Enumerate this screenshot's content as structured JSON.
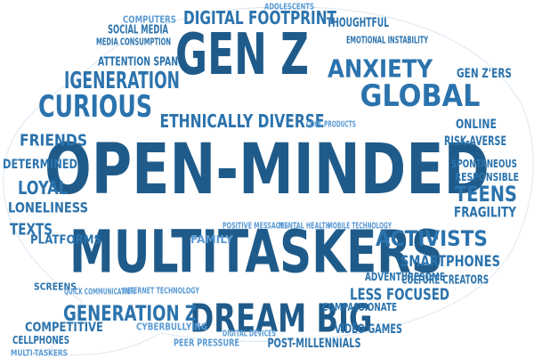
{
  "colors": {
    "dark": "#1f5b8a",
    "mid": "#2b73ad",
    "light": "#5b9bd5",
    "background": "#ffffff"
  },
  "words": [
    {
      "text": "GEN Z",
      "tone": "dark"
    },
    {
      "text": "OPEN-MINDED",
      "tone": "dark"
    },
    {
      "text": "MULTITASKERS",
      "tone": "dark"
    },
    {
      "text": "DREAM BIG",
      "tone": "dark"
    },
    {
      "text": "ANXIETY",
      "tone": "mid"
    },
    {
      "text": "GLOBAL",
      "tone": "mid"
    },
    {
      "text": "CURIOUS",
      "tone": "mid"
    },
    {
      "text": "IGENERATION",
      "tone": "mid"
    },
    {
      "text": "DIGITAL FOOTPRINT",
      "tone": "mid"
    },
    {
      "text": "ETHNICALLY DIVERSE",
      "tone": "mid"
    },
    {
      "text": "ACTIVISTS",
      "tone": "mid"
    },
    {
      "text": "SMARTPHONES",
      "tone": "mid"
    },
    {
      "text": "GENERATION Z",
      "tone": "mid"
    },
    {
      "text": "LESS FOCUSED",
      "tone": "mid"
    },
    {
      "text": "POST-MILLENNIALS",
      "tone": "mid"
    },
    {
      "text": "TEENS",
      "tone": "mid"
    },
    {
      "text": "FRIENDS",
      "tone": "mid"
    },
    {
      "text": "LOYAL",
      "tone": "mid"
    },
    {
      "text": "DETERMINED",
      "tone": "mid"
    },
    {
      "text": "LONELINESS",
      "tone": "mid"
    },
    {
      "text": "TEXTS",
      "tone": "mid"
    },
    {
      "text": "PLATFORMS",
      "tone": "mid"
    },
    {
      "text": "COMPETITIVE",
      "tone": "mid"
    },
    {
      "text": "FRAGILITY",
      "tone": "mid"
    },
    {
      "text": "RESPONSIBLE",
      "tone": "mid"
    },
    {
      "text": "SPONTANEOUS",
      "tone": "mid"
    },
    {
      "text": "RISK-AVERSE",
      "tone": "mid"
    },
    {
      "text": "ONLINE",
      "tone": "mid"
    },
    {
      "text": "GEN Z'ERS",
      "tone": "mid"
    },
    {
      "text": "CULTURE CREATORS",
      "tone": "mid"
    },
    {
      "text": "ADVENTURESOME",
      "tone": "mid"
    },
    {
      "text": "COMPASSIONATE",
      "tone": "mid"
    },
    {
      "text": "VIDEO GAMES",
      "tone": "mid"
    },
    {
      "text": "THOUGHTFUL",
      "tone": "mid"
    },
    {
      "text": "EMOTIONAL INSTABILITY",
      "tone": "mid"
    },
    {
      "text": "SOCIAL MEDIA",
      "tone": "mid"
    },
    {
      "text": "MEDIA CONSUMPTION",
      "tone": "mid"
    },
    {
      "text": "ATTENTION SPAN",
      "tone": "mid"
    },
    {
      "text": "CELLPHONES",
      "tone": "mid"
    },
    {
      "text": "SCREENS",
      "tone": "mid"
    },
    {
      "text": "CYBERBULLYING",
      "tone": "light"
    },
    {
      "text": "PEER PRESSURE",
      "tone": "light"
    },
    {
      "text": "COMPUTERS",
      "tone": "light"
    },
    {
      "text": "FAMILY",
      "tone": "light"
    },
    {
      "text": "DIGITAL DEVICES",
      "tone": "light"
    },
    {
      "text": "INTERNET TECHNOLOGY",
      "tone": "light"
    },
    {
      "text": "QUICK COMMUNICATION",
      "tone": "light"
    },
    {
      "text": "COOL PRODUCTS",
      "tone": "light"
    },
    {
      "text": "MENTAL HEALTH",
      "tone": "light"
    },
    {
      "text": "MOBILE TECHNOLOGY",
      "tone": "light"
    },
    {
      "text": "POSITIVE MESSAGES",
      "tone": "light"
    },
    {
      "text": "ADOLESCENTS",
      "tone": "light"
    },
    {
      "text": "MULTI-TASKERS",
      "tone": "light"
    }
  ]
}
